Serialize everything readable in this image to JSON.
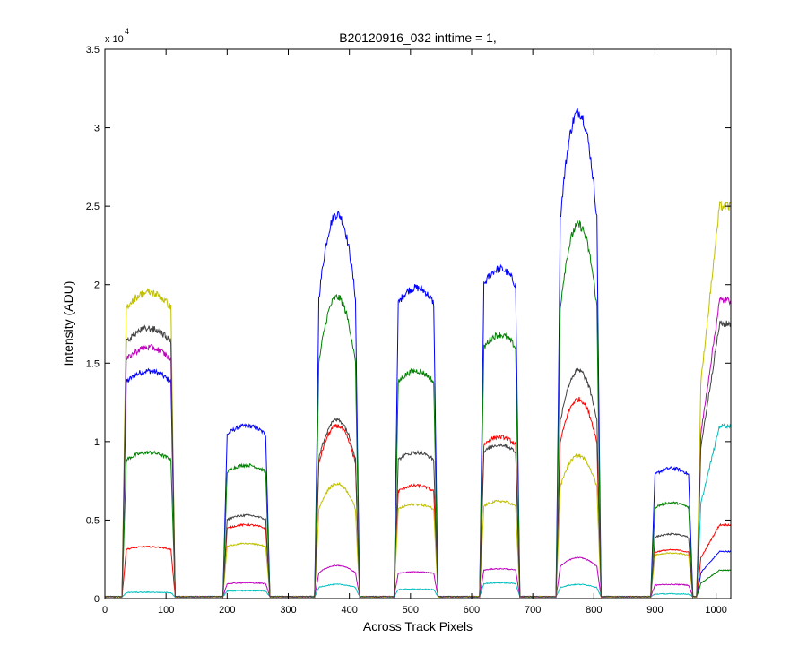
{
  "chart_data": {
    "type": "line",
    "title": "B20120916_032 inttime = 1,",
    "xlabel": "Across Track Pixels",
    "ylabel": "Intensity (ADU)",
    "xlim": [
      0,
      1024
    ],
    "ylim": [
      0,
      35000
    ],
    "y_multiplier_label": {
      "base": "x 10",
      "exponent": "4"
    },
    "x_ticks": [
      0,
      100,
      200,
      300,
      400,
      500,
      600,
      700,
      800,
      900,
      1000
    ],
    "x_tick_labels": [
      "0",
      "100",
      "200",
      "300",
      "400",
      "500",
      "600",
      "700",
      "800",
      "900",
      "1000"
    ],
    "y_ticks": [
      0,
      5000,
      10000,
      15000,
      20000,
      25000,
      30000,
      35000
    ],
    "y_tick_labels": [
      "0",
      "0.5",
      "1",
      "1.5",
      "2",
      "2.5",
      "3",
      "3.5"
    ],
    "grid": false,
    "legend": "none",
    "series_colors": [
      "#0000ff",
      "#008000",
      "#ff0000",
      "#00bfbf",
      "#bf00bf",
      "#bfbf00",
      "#404040"
    ],
    "segments": [
      {
        "start": 35,
        "end": 108,
        "shape": "flat"
      },
      {
        "start": 200,
        "end": 263,
        "shape": "flat"
      },
      {
        "start": 350,
        "end": 410,
        "shape": "peak"
      },
      {
        "start": 480,
        "end": 538,
        "shape": "flat"
      },
      {
        "start": 620,
        "end": 672,
        "shape": "flat"
      },
      {
        "start": 745,
        "end": 805,
        "shape": "peak"
      },
      {
        "start": 900,
        "end": 955,
        "shape": "flat"
      },
      {
        "start": 975,
        "end": 1024,
        "shape": "rise"
      }
    ],
    "series": [
      {
        "color": "#0000ff",
        "levels": [
          14500,
          11000,
          24500,
          19800,
          21000,
          31000,
          8300,
          3000
        ]
      },
      {
        "color": "#008000",
        "levels": [
          9300,
          8500,
          19200,
          14500,
          16800,
          23800,
          6100,
          1800
        ]
      },
      {
        "color": "#ff0000",
        "levels": [
          3300,
          4700,
          11000,
          7200,
          10300,
          12700,
          3100,
          4700
        ]
      },
      {
        "color": "#00bfbf",
        "levels": [
          400,
          500,
          900,
          600,
          1000,
          900,
          300,
          11000
        ]
      },
      {
        "color": "#bf00bf",
        "levels": [
          16000,
          1000,
          2100,
          1700,
          1900,
          2600,
          900,
          19000
        ]
      },
      {
        "color": "#bfbf00",
        "levels": [
          19500,
          3500,
          7300,
          6000,
          6200,
          9100,
          2900,
          25000
        ]
      },
      {
        "color": "#404040",
        "levels": [
          17200,
          5300,
          11400,
          9300,
          9800,
          14500,
          4100,
          17500
        ]
      }
    ]
  }
}
